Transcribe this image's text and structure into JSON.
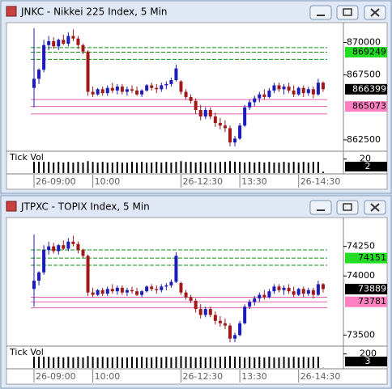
{
  "chart_data": [
    {
      "type": "candlestick",
      "title": "JNKC - Nikkei 225 Index, 5 Min",
      "up_color": "#1c1cb8",
      "down_color": "#a01818",
      "ylim": [
        861750,
        871400
      ],
      "yticks": [
        862500,
        867500,
        870000
      ],
      "categories": [
        "26-09:00",
        null,
        null,
        null,
        null,
        null,
        null,
        null,
        null,
        null,
        null,
        null,
        "10:00",
        null,
        null,
        null,
        null,
        null,
        null,
        null,
        null,
        null,
        null,
        null,
        null,
        null,
        null,
        null,
        null,
        null,
        "26-12:30",
        null,
        null,
        null,
        null,
        null,
        null,
        null,
        null,
        null,
        null,
        null,
        "13:30",
        null,
        null,
        null,
        null,
        null,
        null,
        null,
        null,
        null,
        null,
        null,
        "26-14:30",
        null,
        null,
        null,
        null,
        null
      ],
      "ohlc": [
        [
          866500,
          871100,
          865000,
          867200
        ],
        [
          867200,
          868000,
          866800,
          867900
        ],
        [
          867900,
          870200,
          867700,
          869800
        ],
        [
          869800,
          870500,
          869400,
          870100
        ],
        [
          870100,
          870400,
          869500,
          869700
        ],
        [
          869700,
          870300,
          869400,
          870200
        ],
        [
          870200,
          870600,
          869800,
          869900
        ],
        [
          869900,
          870800,
          869700,
          870500
        ],
        [
          870500,
          871000,
          870100,
          870300
        ],
        [
          870300,
          870500,
          869500,
          869800
        ],
        [
          869800,
          869900,
          869100,
          869300
        ],
        [
          869300,
          869400,
          865900,
          866200
        ],
        [
          866200,
          866600,
          865800,
          866000
        ],
        [
          866000,
          866500,
          865900,
          866400
        ],
        [
          866400,
          866600,
          865900,
          866100
        ],
        [
          866100,
          866700,
          865900,
          866500
        ],
        [
          866500,
          866900,
          866100,
          866300
        ],
        [
          866300,
          866800,
          866000,
          866600
        ],
        [
          866600,
          866800,
          866000,
          866200
        ],
        [
          866200,
          866600,
          865900,
          866400
        ],
        [
          866400,
          866700,
          866100,
          866300
        ],
        [
          866300,
          866600,
          865900,
          866000
        ],
        [
          866000,
          866400,
          865800,
          866300
        ],
        [
          866300,
          866800,
          866200,
          866700
        ],
        [
          866700,
          866900,
          866300,
          866500
        ],
        [
          866500,
          866800,
          866100,
          866400
        ],
        [
          866400,
          866900,
          866200,
          866700
        ],
        [
          866700,
          867000,
          866400,
          866800
        ],
        [
          866800,
          867300,
          866600,
          867100
        ],
        [
          867100,
          868300,
          867000,
          868000
        ],
        [
          867000,
          867100,
          866000,
          866200
        ],
        [
          866200,
          866400,
          865600,
          865800
        ],
        [
          865800,
          866000,
          865300,
          865500
        ],
        [
          865500,
          865700,
          864500,
          864800
        ],
        [
          864800,
          865200,
          864000,
          864300
        ],
        [
          864300,
          865000,
          864100,
          864800
        ],
        [
          864800,
          865000,
          864100,
          864300
        ],
        [
          864300,
          864600,
          863500,
          863800
        ],
        [
          863800,
          864200,
          863300,
          863600
        ],
        [
          863600,
          864000,
          863100,
          863400
        ],
        [
          863400,
          863600,
          862000,
          862300
        ],
        [
          862300,
          862800,
          862000,
          862600
        ],
        [
          862600,
          863800,
          862500,
          863600
        ],
        [
          863600,
          865200,
          863500,
          865000
        ],
        [
          865000,
          865600,
          864800,
          865400
        ],
        [
          865400,
          865900,
          865100,
          865700
        ],
        [
          865700,
          866200,
          865400,
          866000
        ],
        [
          866000,
          866400,
          865600,
          865800
        ],
        [
          865800,
          866500,
          865700,
          866300
        ],
        [
          866300,
          866900,
          866100,
          866700
        ],
        [
          866700,
          866900,
          866200,
          866400
        ],
        [
          866400,
          866800,
          866000,
          866600
        ],
        [
          866600,
          866900,
          866100,
          866300
        ],
        [
          866300,
          866700,
          865800,
          866000
        ],
        [
          866000,
          866600,
          865900,
          866500
        ],
        [
          866500,
          866700,
          865800,
          866100
        ],
        [
          866100,
          866600,
          865900,
          866400
        ],
        [
          866400,
          866600,
          865700,
          866000
        ],
        [
          866000,
          867200,
          865900,
          866900
        ],
        [
          866900,
          867000,
          866200,
          866399
        ]
      ],
      "levels": [
        {
          "value": 869600,
          "color": "#109010"
        },
        {
          "value": 869249,
          "color": "#109010",
          "tag_color": "#22dd22"
        },
        {
          "value": 868700,
          "color": "#109010"
        },
        {
          "value": 865600,
          "color": "#e060a8"
        },
        {
          "value": 865073,
          "color": "#e060a8",
          "tag_color": "#ff80c0"
        },
        {
          "value": 864500,
          "color": "#e060a8"
        }
      ],
      "volume": {
        "label": "Tick Vol",
        "ylim": [
          0,
          30
        ],
        "yticks": [
          20
        ],
        "values": [
          20,
          17,
          16,
          16,
          15,
          16,
          15,
          16,
          15,
          16,
          15,
          17,
          16,
          15,
          16,
          15,
          15,
          16,
          15,
          15,
          16,
          15,
          16,
          15,
          15,
          16,
          15,
          16,
          15,
          16,
          17,
          16,
          16,
          15,
          16,
          15,
          16,
          15,
          16,
          16,
          17,
          16,
          16,
          15,
          16,
          15,
          16,
          15,
          16,
          15,
          15,
          16,
          15,
          16,
          15,
          16,
          15,
          16,
          16,
          2
        ]
      }
    },
    {
      "type": "candlestick",
      "title": "JTPXC - TOPIX Index, 5 Min",
      "up_color": "#1c1cb8",
      "down_color": "#a01818",
      "ylim": [
        73420,
        74480
      ],
      "yticks": [
        73500,
        74000,
        74250
      ],
      "categories": [
        "26-09:00",
        null,
        null,
        null,
        null,
        null,
        null,
        null,
        null,
        null,
        null,
        null,
        "10:00",
        null,
        null,
        null,
        null,
        null,
        null,
        null,
        null,
        null,
        null,
        null,
        null,
        null,
        null,
        null,
        null,
        null,
        "26-12:30",
        null,
        null,
        null,
        null,
        null,
        null,
        null,
        null,
        null,
        null,
        null,
        "13:30",
        null,
        null,
        null,
        null,
        null,
        null,
        null,
        null,
        null,
        null,
        null,
        "26-14:30",
        null,
        null,
        null,
        null,
        null
      ],
      "ohlc": [
        [
          73890,
          74350,
          73740,
          73960
        ],
        [
          73960,
          74040,
          73920,
          74030
        ],
        [
          74030,
          74260,
          74010,
          74220
        ],
        [
          74220,
          74290,
          74180,
          74250
        ],
        [
          74250,
          74280,
          74190,
          74210
        ],
        [
          74210,
          74270,
          74180,
          74260
        ],
        [
          74260,
          74300,
          74220,
          74230
        ],
        [
          74230,
          74320,
          74210,
          74290
        ],
        [
          74290,
          74340,
          74250,
          74270
        ],
        [
          74270,
          74290,
          74190,
          74220
        ],
        [
          74220,
          74230,
          74150,
          74170
        ],
        [
          74170,
          74180,
          73830,
          73860
        ],
        [
          73860,
          73900,
          73820,
          73840
        ],
        [
          73840,
          73890,
          73830,
          73880
        ],
        [
          73880,
          73900,
          73830,
          73850
        ],
        [
          73850,
          73910,
          73830,
          73890
        ],
        [
          73890,
          73930,
          73850,
          73870
        ],
        [
          73870,
          73920,
          73840,
          73900
        ],
        [
          73900,
          73920,
          73840,
          73860
        ],
        [
          73860,
          73900,
          73830,
          73880
        ],
        [
          73880,
          73910,
          73850,
          73870
        ],
        [
          73870,
          73900,
          73830,
          73840
        ],
        [
          73840,
          73880,
          73820,
          73870
        ],
        [
          73870,
          73920,
          73860,
          73910
        ],
        [
          73910,
          73930,
          73870,
          73890
        ],
        [
          73890,
          73920,
          73850,
          73880
        ],
        [
          73880,
          73930,
          73860,
          73910
        ],
        [
          73910,
          73940,
          73880,
          73920
        ],
        [
          73920,
          73970,
          73900,
          73950
        ],
        [
          73950,
          74200,
          73940,
          74170
        ],
        [
          73940,
          73950,
          73840,
          73860
        ],
        [
          73860,
          73880,
          73800,
          73820
        ],
        [
          73820,
          73840,
          73770,
          73790
        ],
        [
          73790,
          73810,
          73690,
          73720
        ],
        [
          73720,
          73760,
          73640,
          73670
        ],
        [
          73670,
          73740,
          73650,
          73720
        ],
        [
          73720,
          73740,
          73650,
          73670
        ],
        [
          73670,
          73700,
          73590,
          73620
        ],
        [
          73620,
          73660,
          73570,
          73600
        ],
        [
          73600,
          73640,
          73550,
          73580
        ],
        [
          73580,
          73600,
          73440,
          73470
        ],
        [
          73470,
          73520,
          73440,
          73500
        ],
        [
          73500,
          73620,
          73490,
          73600
        ],
        [
          73600,
          73760,
          73590,
          73740
        ],
        [
          73740,
          73800,
          73720,
          73780
        ],
        [
          73780,
          73830,
          73750,
          73810
        ],
        [
          73810,
          73860,
          73780,
          73840
        ],
        [
          73840,
          73880,
          73800,
          73820
        ],
        [
          73820,
          73890,
          73810,
          73870
        ],
        [
          73870,
          73930,
          73850,
          73910
        ],
        [
          73910,
          73930,
          73860,
          73880
        ],
        [
          73880,
          73920,
          73840,
          73900
        ],
        [
          73900,
          73930,
          73850,
          73870
        ],
        [
          73870,
          73910,
          73820,
          73840
        ],
        [
          73840,
          73900,
          73830,
          73890
        ],
        [
          73890,
          73910,
          73820,
          73850
        ],
        [
          73850,
          73900,
          73830,
          73880
        ],
        [
          73880,
          73900,
          73810,
          73840
        ],
        [
          73840,
          73960,
          73830,
          73930
        ],
        [
          73930,
          73940,
          73860,
          73889
        ]
      ],
      "levels": [
        {
          "value": 74220,
          "color": "#109010"
        },
        {
          "value": 74151,
          "color": "#109010",
          "tag_color": "#22dd22"
        },
        {
          "value": 74090,
          "color": "#109010"
        },
        {
          "value": 73820,
          "color": "#e060a8"
        },
        {
          "value": 73781,
          "color": "#e060a8",
          "tag_color": "#ff80c0"
        },
        {
          "value": 73730,
          "color": "#e060a8"
        }
      ],
      "volume": {
        "label": "Tick Vol",
        "ylim": [
          0,
          300
        ],
        "yticks": [
          200
        ],
        "values": [
          200,
          170,
          160,
          160,
          150,
          160,
          150,
          160,
          150,
          160,
          150,
          170,
          160,
          150,
          160,
          150,
          150,
          160,
          150,
          150,
          160,
          150,
          160,
          150,
          150,
          160,
          150,
          160,
          150,
          160,
          170,
          160,
          160,
          150,
          160,
          150,
          160,
          150,
          160,
          160,
          170,
          160,
          160,
          150,
          160,
          150,
          160,
          150,
          160,
          150,
          150,
          160,
          150,
          160,
          150,
          160,
          150,
          160,
          160,
          3
        ]
      }
    }
  ]
}
